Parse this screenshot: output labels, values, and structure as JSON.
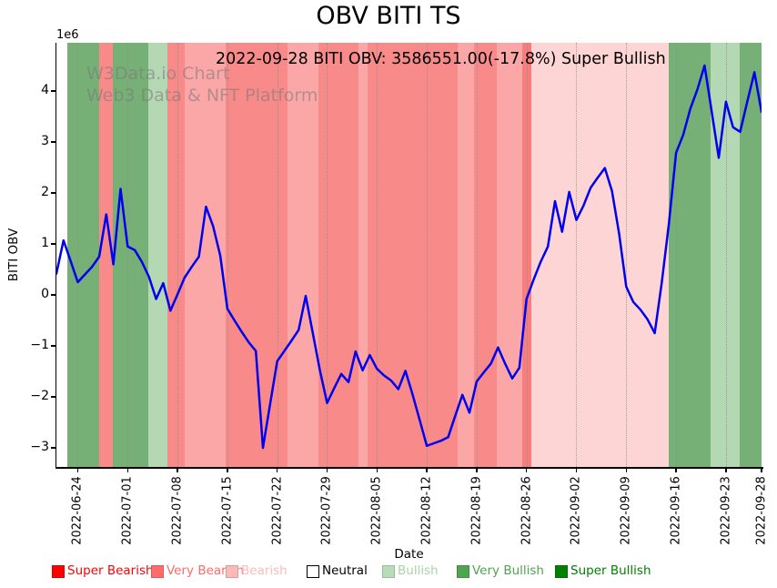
{
  "title": "OBV BITI TS",
  "subtitle": "2022-09-28 BITI OBV: 3586551.00(-17.8%) Super Bullish",
  "watermark": {
    "line1": "W3Data.io Chart",
    "line2": "Web3 Data & NFT Platform"
  },
  "axes": {
    "y_label": "BITI OBV",
    "x_label": "Date",
    "y_offset_label": "1e6",
    "y_ticks": [
      4,
      3,
      2,
      1,
      0,
      -1,
      -2,
      -3
    ],
    "y_tick_labels": [
      "4",
      "3",
      "2",
      "1",
      "0",
      "−1",
      "−2",
      "−3"
    ],
    "x_tick_labels": [
      "2022-06-24",
      "2022-07-01",
      "2022-07-08",
      "2022-07-15",
      "2022-07-22",
      "2022-07-29",
      "2022-08-05",
      "2022-08-12",
      "2022-08-19",
      "2022-08-26",
      "2022-09-02",
      "2022-09-09",
      "2022-09-16",
      "2022-09-23",
      "2022-09-28"
    ],
    "x_tick_days": [
      3,
      10,
      17,
      24,
      31,
      38,
      45,
      52,
      59,
      66,
      73,
      80,
      87,
      94,
      99
    ]
  },
  "chart_data": {
    "type": "line",
    "title": "OBV BITI TS",
    "xlabel": "Date",
    "ylabel": "BITI OBV",
    "series_name": "BITI OBV",
    "unit": "values are OBV in millions (1e6)",
    "start_date": "2022-06-21",
    "end_date": "2022-09-28",
    "frequency": "daily",
    "last_point": {
      "date": "2022-09-28",
      "obv": 3586551.0,
      "change_pct": -17.8,
      "sentiment": "Super Bullish"
    },
    "ylim_millions": [
      -3.38,
      4.95
    ],
    "grid": "vertical-dotted-weekly",
    "line_color": "#0000ee",
    "dates": [
      "2022-06-21",
      "2022-06-22",
      "2022-06-23",
      "2022-06-24",
      "2022-06-25",
      "2022-06-26",
      "2022-06-27",
      "2022-06-28",
      "2022-06-29",
      "2022-06-30",
      "2022-07-01",
      "2022-07-02",
      "2022-07-03",
      "2022-07-04",
      "2022-07-05",
      "2022-07-06",
      "2022-07-07",
      "2022-07-08",
      "2022-07-09",
      "2022-07-10",
      "2022-07-11",
      "2022-07-12",
      "2022-07-13",
      "2022-07-14",
      "2022-07-15",
      "2022-07-16",
      "2022-07-17",
      "2022-07-18",
      "2022-07-19",
      "2022-07-20",
      "2022-07-21",
      "2022-07-22",
      "2022-07-23",
      "2022-07-24",
      "2022-07-25",
      "2022-07-26",
      "2022-07-27",
      "2022-07-28",
      "2022-07-29",
      "2022-07-30",
      "2022-07-31",
      "2022-08-01",
      "2022-08-02",
      "2022-08-03",
      "2022-08-04",
      "2022-08-05",
      "2022-08-06",
      "2022-08-07",
      "2022-08-08",
      "2022-08-09",
      "2022-08-10",
      "2022-08-11",
      "2022-08-12",
      "2022-08-13",
      "2022-08-14",
      "2022-08-15",
      "2022-08-16",
      "2022-08-17",
      "2022-08-18",
      "2022-08-19",
      "2022-08-20",
      "2022-08-21",
      "2022-08-22",
      "2022-08-23",
      "2022-08-24",
      "2022-08-25",
      "2022-08-26",
      "2022-08-27",
      "2022-08-28",
      "2022-08-29",
      "2022-08-30",
      "2022-08-31",
      "2022-09-01",
      "2022-09-02",
      "2022-09-03",
      "2022-09-04",
      "2022-09-05",
      "2022-09-06",
      "2022-09-07",
      "2022-09-08",
      "2022-09-09",
      "2022-09-10",
      "2022-09-11",
      "2022-09-12",
      "2022-09-13",
      "2022-09-14",
      "2022-09-15",
      "2022-09-16",
      "2022-09-17",
      "2022-09-18",
      "2022-09-19",
      "2022-09-20",
      "2022-09-21",
      "2022-09-22",
      "2022-09-23",
      "2022-09-24",
      "2022-09-25",
      "2022-09-26",
      "2022-09-27",
      "2022-09-28"
    ],
    "values_millions": [
      0.42,
      1.07,
      0.66,
      0.25,
      0.4,
      0.55,
      0.75,
      1.58,
      0.6,
      2.08,
      0.95,
      0.88,
      0.65,
      0.35,
      -0.08,
      0.23,
      -0.31,
      0.01,
      0.34,
      0.55,
      0.75,
      1.73,
      1.35,
      0.77,
      -0.27,
      -0.5,
      -0.72,
      -0.93,
      -1.1,
      -3.0,
      -2.15,
      -1.3,
      -1.1,
      -0.9,
      -0.69,
      -0.02,
      -0.75,
      -1.48,
      -2.12,
      -1.83,
      -1.55,
      -1.71,
      -1.11,
      -1.48,
      -1.18,
      -1.45,
      -1.58,
      -1.68,
      -1.85,
      -1.49,
      -1.95,
      -2.45,
      -2.96,
      -2.91,
      -2.86,
      -2.79,
      -2.37,
      -1.96,
      -2.31,
      -1.7,
      -1.52,
      -1.35,
      -1.03,
      -1.35,
      -1.64,
      -1.43,
      -0.08,
      0.3,
      0.65,
      0.95,
      1.84,
      1.24,
      2.02,
      1.47,
      1.75,
      2.1,
      2.3,
      2.49,
      2.04,
      1.21,
      0.16,
      -0.14,
      -0.29,
      -0.48,
      -0.75,
      0.25,
      1.4,
      2.79,
      3.14,
      3.65,
      4.03,
      4.5,
      3.6,
      2.69,
      3.79,
      3.29,
      3.2,
      3.79,
      4.37,
      3.59
    ],
    "background_bands": [
      {
        "start_day": 0.0,
        "end_day": 1.47,
        "sentiment": "neutral",
        "color": "#ffffff"
      },
      {
        "start_day": 1.47,
        "end_day": 6.05,
        "sentiment": "super-bullish",
        "color": "#77b077"
      },
      {
        "start_day": 6.05,
        "end_day": 7.96,
        "sentiment": "super-bearish",
        "color": "#f98a8a"
      },
      {
        "start_day": 7.96,
        "end_day": 12.93,
        "sentiment": "super-bullish",
        "color": "#77b077"
      },
      {
        "start_day": 12.93,
        "end_day": 15.6,
        "sentiment": "very-bullish",
        "color": "#b4d7b4"
      },
      {
        "start_day": 15.6,
        "end_day": 18.02,
        "sentiment": "super-bearish",
        "color": "#f98a8a"
      },
      {
        "start_day": 18.02,
        "end_day": 23.75,
        "sentiment": "very-bearish",
        "color": "#fba7a7"
      },
      {
        "start_day": 23.75,
        "end_day": 32.4,
        "sentiment": "super-bearish",
        "color": "#f98a8a"
      },
      {
        "start_day": 32.4,
        "end_day": 36.73,
        "sentiment": "very-bearish",
        "color": "#fba7a7"
      },
      {
        "start_day": 36.73,
        "end_day": 42.46,
        "sentiment": "super-bearish",
        "color": "#f98a8a"
      },
      {
        "start_day": 42.46,
        "end_day": 43.73,
        "sentiment": "very-bearish",
        "color": "#fba7a7"
      },
      {
        "start_day": 43.73,
        "end_day": 56.33,
        "sentiment": "super-bearish",
        "color": "#f98a8a"
      },
      {
        "start_day": 56.33,
        "end_day": 58.62,
        "sentiment": "very-bearish",
        "color": "#fba7a7"
      },
      {
        "start_day": 58.62,
        "end_day": 61.8,
        "sentiment": "super-bearish",
        "color": "#f98a8a"
      },
      {
        "start_day": 61.8,
        "end_day": 65.37,
        "sentiment": "very-bearish",
        "color": "#fba7a7"
      },
      {
        "start_day": 65.37,
        "end_day": 66.64,
        "sentiment": "super-bearish",
        "color": "#f87e7e"
      },
      {
        "start_day": 66.64,
        "end_day": 85.98,
        "sentiment": "bearish",
        "color": "#fdd5d5"
      },
      {
        "start_day": 85.98,
        "end_day": 91.84,
        "sentiment": "super-bullish",
        "color": "#77b077"
      },
      {
        "start_day": 91.84,
        "end_day": 95.91,
        "sentiment": "very-bullish",
        "color": "#b4d7b4"
      },
      {
        "start_day": 95.91,
        "end_day": 99.0,
        "sentiment": "super-bullish",
        "color": "#77b077"
      }
    ]
  },
  "legend": {
    "items": [
      {
        "label": "Super Bearish",
        "color": "#ff0000",
        "text_color": "#ff0000"
      },
      {
        "label": "Very Bearish",
        "color": "#ff6a6a",
        "text_color": "#ff6a6a"
      },
      {
        "label": "Bearish",
        "color": "#ffb9b9",
        "text_color": "#ffb9b9"
      },
      {
        "label": "Neutral",
        "color": "#ffffff",
        "text_color": "#000000"
      },
      {
        "label": "Bullish",
        "color": "#b7dcb7",
        "text_color": "#a9d3a9"
      },
      {
        "label": "Very Bullish",
        "color": "#4fa44f",
        "text_color": "#4fa44f"
      },
      {
        "label": "Super Bullish",
        "color": "#008000",
        "text_color": "#008000"
      }
    ]
  }
}
